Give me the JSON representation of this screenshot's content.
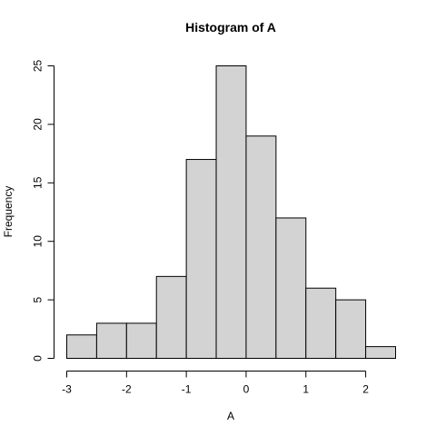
{
  "chart_data": {
    "type": "bar",
    "title": "Histogram of A",
    "xlabel": "A",
    "ylabel": "Frequency",
    "bins": [
      {
        "start": -3.0,
        "end": -2.5,
        "count": 2
      },
      {
        "start": -2.5,
        "end": -2.0,
        "count": 3
      },
      {
        "start": -2.0,
        "end": -1.5,
        "count": 3
      },
      {
        "start": -1.5,
        "end": -1.0,
        "count": 7
      },
      {
        "start": -1.0,
        "end": -0.5,
        "count": 17
      },
      {
        "start": -0.5,
        "end": 0.0,
        "count": 25
      },
      {
        "start": 0.0,
        "end": 0.5,
        "count": 19
      },
      {
        "start": 0.5,
        "end": 1.0,
        "count": 12
      },
      {
        "start": 1.0,
        "end": 1.5,
        "count": 6
      },
      {
        "start": 1.5,
        "end": 2.0,
        "count": 5
      },
      {
        "start": 2.0,
        "end": 2.5,
        "count": 1
      }
    ],
    "xlim": [
      -3,
      2.5
    ],
    "ylim": [
      0,
      25
    ],
    "xticks": [
      -3,
      -2,
      -1,
      0,
      1,
      2
    ],
    "xtick_labels": [
      "-3",
      "-2",
      "-1",
      "0",
      "1",
      "2"
    ],
    "yticks": [
      0,
      5,
      10,
      15,
      20,
      25
    ],
    "ytick_labels": [
      "0",
      "5",
      "10",
      "15",
      "20",
      "25"
    ],
    "grid": false,
    "bar_color": "#d3d3d3",
    "edge_color": "#000000"
  }
}
